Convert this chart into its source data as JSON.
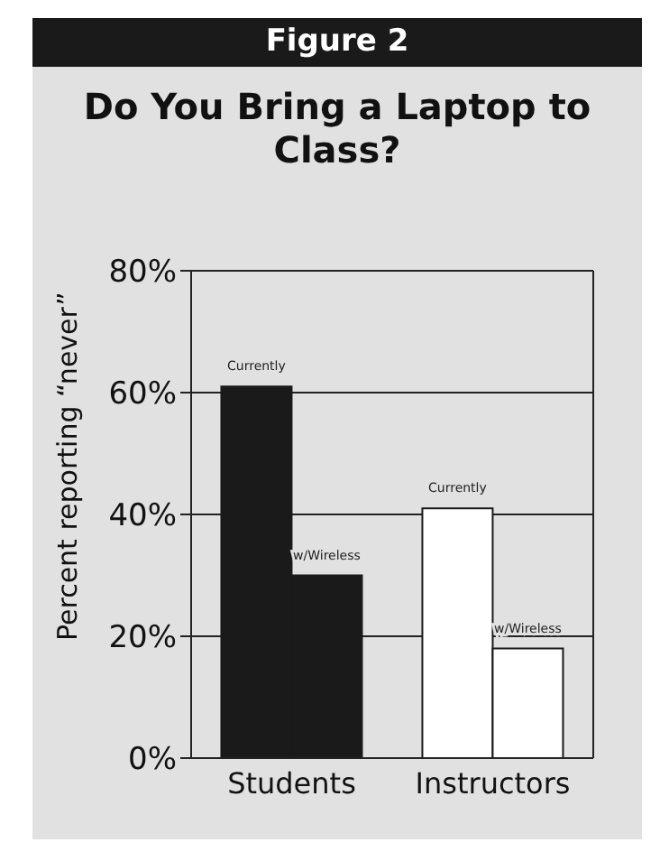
{
  "chart_data": {
    "type": "bar",
    "title": "Figure 2",
    "subtitle": "Do You Bring a Laptop to Class?",
    "ylabel": "Percent reporting “never”",
    "categories": [
      "Students",
      "Instructors"
    ],
    "series": [
      {
        "name": "Currently",
        "colors": [
          "#1a1a1a",
          "#ffffff"
        ],
        "values": [
          61,
          41
        ]
      },
      {
        "name": "w/Wireless",
        "colors": [
          "#1a1a1a",
          "#ffffff"
        ],
        "values": [
          30,
          18
        ]
      }
    ],
    "ylim": [
      0,
      80
    ],
    "yticks": [
      {
        "value": 0,
        "label": "0%"
      },
      {
        "value": 20,
        "label": "20%"
      },
      {
        "value": 40,
        "label": "40%"
      },
      {
        "value": 60,
        "label": "60%"
      },
      {
        "value": 80,
        "label": "80%"
      }
    ],
    "grid": "y"
  }
}
